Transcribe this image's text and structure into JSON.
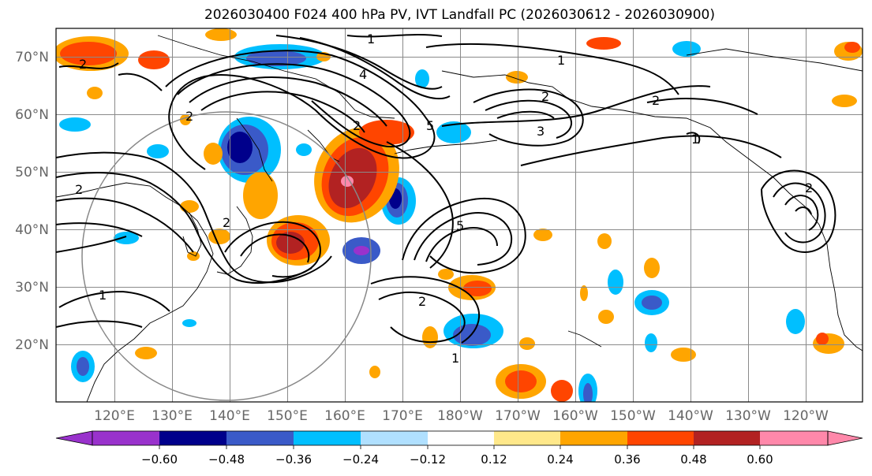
{
  "title": "2026030400 F024 400 hPa PV, IVT Landfall PC (2026030612 - 2026030900)",
  "map": {
    "lon_range": [
      110,
      250
    ],
    "lat_range": [
      10,
      75
    ],
    "lat_ticks": [
      "20°N",
      "30°N",
      "40°N",
      "50°N",
      "60°N",
      "70°N"
    ],
    "lon_ticks": [
      "120°E",
      "130°E",
      "140°E",
      "150°E",
      "160°E",
      "170°E",
      "180°W",
      "170°W",
      "160°W",
      "150°W",
      "140°W",
      "130°W",
      "120°W"
    ],
    "contour_labels": [
      "2",
      "2",
      "1",
      "2",
      "1",
      "2",
      "1",
      "2",
      "3",
      "2",
      "1",
      "4",
      "5",
      "5",
      "2",
      "1",
      "2",
      "2"
    ]
  },
  "colorbar": {
    "levels": [
      "−0.60",
      "−0.48",
      "−0.36",
      "−0.24",
      "−0.12",
      "0.12",
      "0.24",
      "0.36",
      "0.48",
      "0.60"
    ],
    "colors": [
      "#9932CC",
      "#00008B",
      "#3A5AC8",
      "#00BFFF",
      "#B0E0FF",
      "#FFFFFF",
      "#FFE88A",
      "#FFA500",
      "#FF4500",
      "#B22222",
      "#FF88AA"
    ]
  }
}
